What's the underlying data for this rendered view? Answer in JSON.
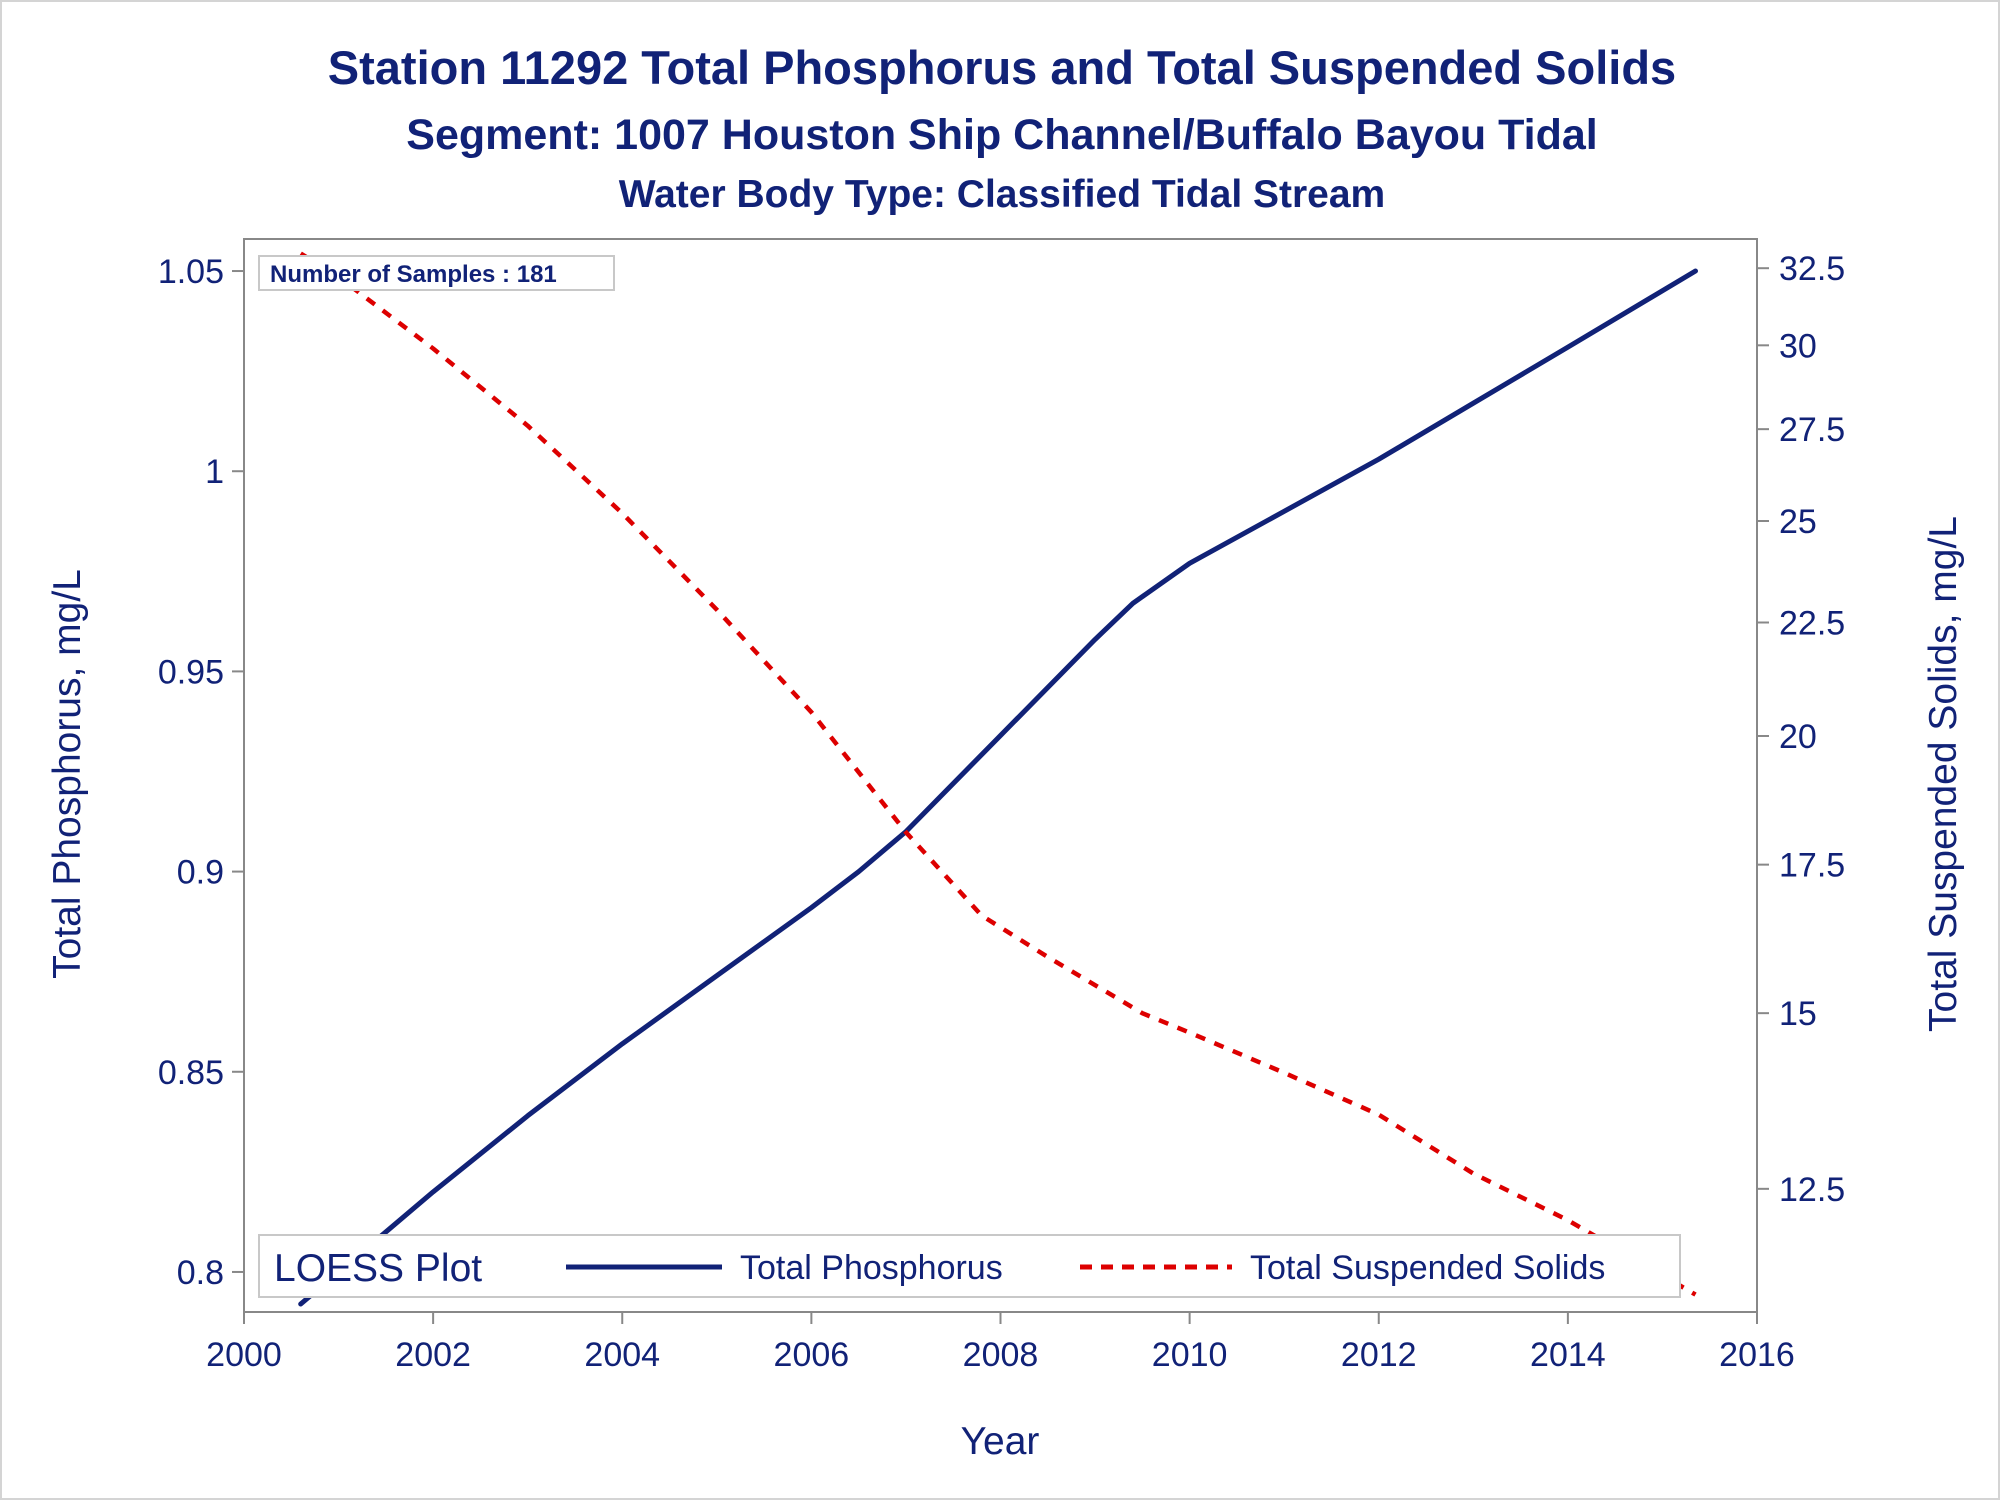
{
  "titles": {
    "line1": "Station 11292  Total Phosphorus and Total Suspended Solids",
    "line2": "Segment: 1007  Houston Ship Channel/Buffalo Bayou Tidal",
    "line3": "Water Body Type: Classified Tidal Stream"
  },
  "inset_label": "Number of Samples : 181",
  "legend": {
    "title": "LOESS Plot",
    "placement": "bottom-inside"
  },
  "colors": {
    "text": "#112277",
    "phosphorus": "#112277",
    "tss": "#dd0000",
    "axis": "#888888"
  },
  "chart_data": {
    "type": "line",
    "xlabel": "Year",
    "ylabel": "Total Phosphorus, mg/L",
    "y2label": "Total Suspended Solids, mg/L",
    "xlim": [
      2000,
      2016
    ],
    "x_ticks": [
      2000,
      2002,
      2004,
      2006,
      2008,
      2010,
      2012,
      2014,
      2016
    ],
    "ylim": [
      0.79,
      1.058
    ],
    "y_ticks": [
      "0.8",
      "0.85",
      "0.9",
      "0.95",
      "1",
      "1.05"
    ],
    "y2_scale": "log",
    "y2lim": [
      11,
      33.5
    ],
    "y2_ticks": [
      "12.5",
      "15",
      "17.5",
      "20",
      "22.5",
      "25",
      "27.5",
      "30",
      "32.5"
    ],
    "grid": false,
    "series": [
      {
        "name": "Total Phosphorus",
        "axis": "left",
        "style": "solid",
        "x": [
          2000.6,
          2001.0,
          2002.0,
          2003.0,
          2004.0,
          2005.0,
          2006.0,
          2006.5,
          2007.0,
          2008.0,
          2009.0,
          2009.4,
          2010.0,
          2011.0,
          2012.0,
          2013.0,
          2014.0,
          2015.35
        ],
        "y": [
          0.792,
          0.8,
          0.82,
          0.839,
          0.857,
          0.874,
          0.891,
          0.9,
          0.91,
          0.934,
          0.958,
          0.967,
          0.977,
          0.99,
          1.003,
          1.017,
          1.031,
          1.05
        ]
      },
      {
        "name": "Total Suspended Solids",
        "axis": "right",
        "style": "dashed",
        "x": [
          2000.6,
          2001.0,
          2002.0,
          2003.0,
          2004.0,
          2005.0,
          2006.0,
          2007.0,
          2007.8,
          2008.5,
          2009.5,
          2010.0,
          2011.0,
          2012.0,
          2013.0,
          2014.0,
          2015.35
        ],
        "y": [
          33.0,
          32.2,
          29.9,
          27.6,
          25.2,
          22.8,
          20.5,
          18.1,
          16.6,
          15.9,
          15.0,
          14.7,
          14.1,
          13.5,
          12.7,
          12.1,
          11.2
        ]
      }
    ]
  }
}
